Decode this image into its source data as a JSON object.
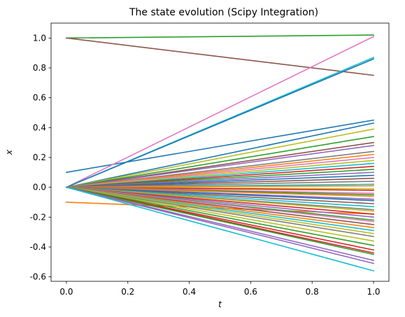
{
  "chart_data": {
    "type": "line",
    "title": "The state evolution (Scipy Integration)",
    "xlabel": "t",
    "ylabel": "x",
    "xlim": [
      -0.05,
      1.05
    ],
    "ylim": [
      -0.63,
      1.1
    ],
    "x_ticks": [
      "0.0",
      "0.2",
      "0.4",
      "0.6",
      "0.8",
      "1.0"
    ],
    "y_ticks": [
      "-0.6",
      "-0.4",
      "-0.2",
      "0.0",
      "0.2",
      "0.4",
      "0.6",
      "0.8",
      "1.0"
    ],
    "grid": false,
    "legend": false,
    "x": [
      0.0,
      1.0
    ],
    "color_cycle": [
      "#1f77b4",
      "#ff7f0e",
      "#2ca02c",
      "#d62728",
      "#9467bd",
      "#8c564b",
      "#e377c2",
      "#7f7f7f",
      "#bcbd22",
      "#17becf"
    ],
    "series": [
      {
        "values": [
          0.1,
          0.45
        ],
        "color": "#1f77b4"
      },
      {
        "values": [
          -0.1,
          -0.18
        ],
        "color": "#ff7f0e"
      },
      {
        "values": [
          1.0,
          1.02
        ],
        "color": "#2ca02c"
      },
      {
        "values": [
          1.0,
          0.75
        ],
        "color": "#8c564b"
      },
      {
        "values": [
          0.0,
          1.01
        ],
        "color": "#e377c2"
      },
      {
        "values": [
          0.0,
          0.87
        ],
        "color": "#17becf"
      },
      {
        "values": [
          0.0,
          0.86
        ],
        "color": "#1f77b4"
      },
      {
        "values": [
          0.0,
          0.43
        ],
        "color": "#1f77b4"
      },
      {
        "values": [
          0.0,
          0.39
        ],
        "color": "#bcbd22"
      },
      {
        "values": [
          0.0,
          0.34
        ],
        "color": "#2ca02c"
      },
      {
        "values": [
          0.0,
          0.3
        ],
        "color": "#8c564b"
      },
      {
        "values": [
          0.0,
          0.28
        ],
        "color": "#9467bd"
      },
      {
        "values": [
          0.0,
          0.24
        ],
        "color": "#7f7f7f"
      },
      {
        "values": [
          0.0,
          0.22
        ],
        "color": "#ff7f0e"
      },
      {
        "values": [
          0.0,
          0.2
        ],
        "color": "#e377c2"
      },
      {
        "values": [
          0.0,
          0.18
        ],
        "color": "#bcbd22"
      },
      {
        "values": [
          0.0,
          0.16
        ],
        "color": "#17becf"
      },
      {
        "values": [
          0.0,
          0.14
        ],
        "color": "#d62728"
      },
      {
        "values": [
          0.0,
          0.12
        ],
        "color": "#2ca02c"
      },
      {
        "values": [
          0.0,
          0.1
        ],
        "color": "#9467bd"
      },
      {
        "values": [
          0.0,
          0.08
        ],
        "color": "#1f77b4"
      },
      {
        "values": [
          0.0,
          0.06
        ],
        "color": "#8c564b"
      },
      {
        "values": [
          0.0,
          0.04
        ],
        "color": "#7f7f7f"
      },
      {
        "values": [
          0.0,
          0.02
        ],
        "color": "#17becf"
      },
      {
        "values": [
          0.0,
          0.01
        ],
        "color": "#ff7f0e"
      },
      {
        "values": [
          0.0,
          -0.01
        ],
        "color": "#bcbd22"
      },
      {
        "values": [
          0.0,
          -0.02
        ],
        "color": "#d62728"
      },
      {
        "values": [
          0.0,
          -0.04
        ],
        "color": "#e377c2"
      },
      {
        "values": [
          0.0,
          -0.05
        ],
        "color": "#2ca02c"
      },
      {
        "values": [
          0.0,
          -0.06
        ],
        "color": "#ff7f0e"
      },
      {
        "values": [
          0.0,
          -0.08
        ],
        "color": "#9467bd"
      },
      {
        "values": [
          0.0,
          -0.09
        ],
        "color": "#1f77b4"
      },
      {
        "values": [
          0.0,
          -0.11
        ],
        "color": "#8c564b"
      },
      {
        "values": [
          0.0,
          -0.13
        ],
        "color": "#17becf"
      },
      {
        "values": [
          0.0,
          -0.15
        ],
        "color": "#7f7f7f"
      },
      {
        "values": [
          0.0,
          -0.16
        ],
        "color": "#bcbd22"
      },
      {
        "values": [
          0.0,
          -0.18
        ],
        "color": "#d62728"
      },
      {
        "values": [
          0.0,
          -0.2
        ],
        "color": "#9467bd"
      },
      {
        "values": [
          0.0,
          -0.22
        ],
        "color": "#2ca02c"
      },
      {
        "values": [
          0.0,
          -0.23
        ],
        "color": "#e377c2"
      },
      {
        "values": [
          0.0,
          -0.25
        ],
        "color": "#8c564b"
      },
      {
        "values": [
          0.0,
          -0.27
        ],
        "color": "#ff7f0e"
      },
      {
        "values": [
          0.0,
          -0.29
        ],
        "color": "#17becf"
      },
      {
        "values": [
          0.0,
          -0.31
        ],
        "color": "#bcbd22"
      },
      {
        "values": [
          0.0,
          -0.33
        ],
        "color": "#7f7f7f"
      },
      {
        "values": [
          0.0,
          -0.36
        ],
        "color": "#bcbd22"
      },
      {
        "values": [
          0.0,
          -0.39
        ],
        "color": "#2ca02c"
      },
      {
        "values": [
          0.0,
          -0.42
        ],
        "color": "#d62728"
      },
      {
        "values": [
          0.0,
          -0.44
        ],
        "color": "#d62728"
      },
      {
        "values": [
          0.0,
          -0.45
        ],
        "color": "#2ca02c"
      },
      {
        "values": [
          0.0,
          -0.49
        ],
        "color": "#9467bd"
      },
      {
        "values": [
          0.0,
          -0.51
        ],
        "color": "#9467bd"
      },
      {
        "values": [
          0.0,
          -0.56
        ],
        "color": "#17becf"
      }
    ]
  }
}
